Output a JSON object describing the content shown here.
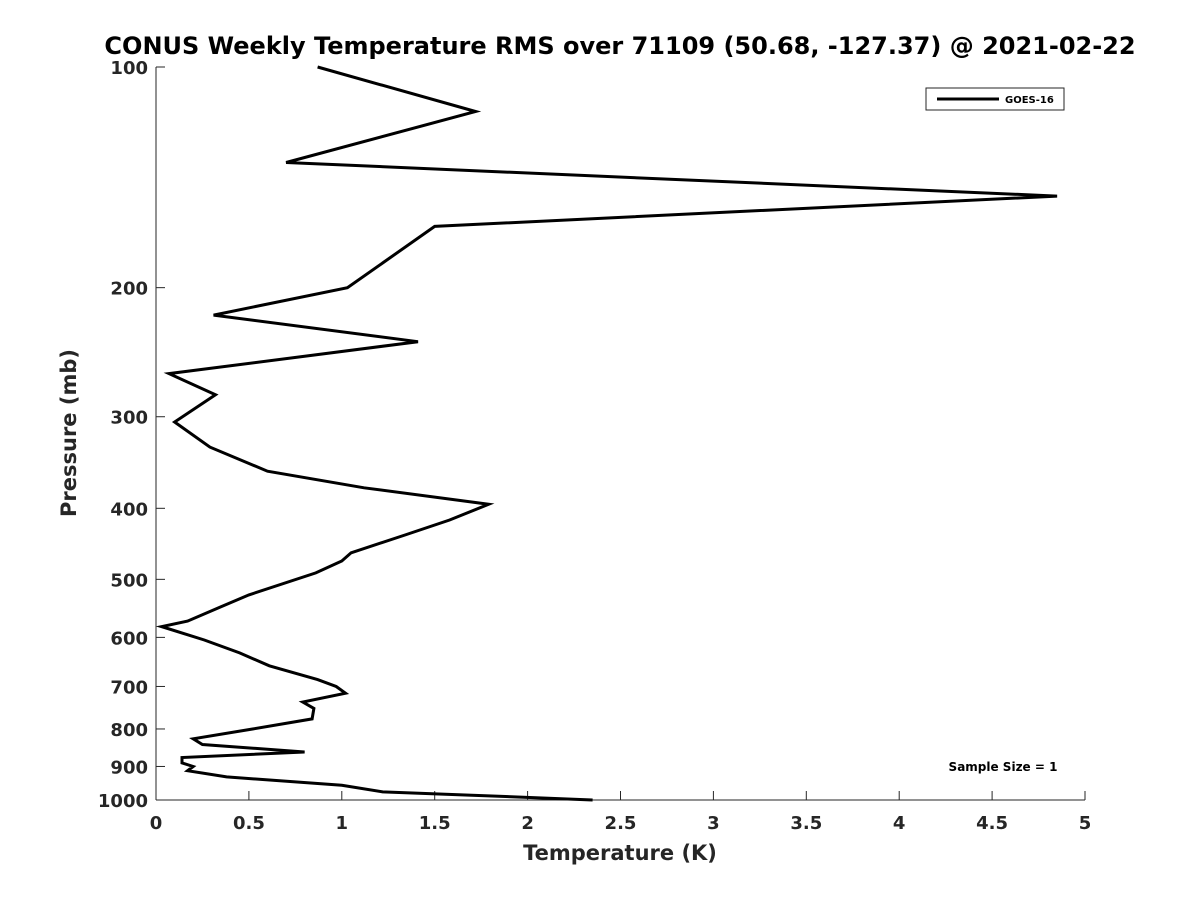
{
  "chart_data": {
    "type": "line",
    "title": "CONUS Weekly Temperature RMS over 71109 (50.68, -127.37) @ 2021-02-22",
    "xlabel": "Temperature (K)",
    "ylabel": "Pressure (mb)",
    "xlim": [
      0,
      5
    ],
    "ylim": [
      1000,
      100
    ],
    "y_scale": "log",
    "y_reversed": true,
    "grid": false,
    "legend_position": "top-right",
    "x_ticks": [
      "0",
      "0.5",
      "1",
      "1.5",
      "2",
      "2.5",
      "3",
      "3.5",
      "4",
      "4.5",
      "5"
    ],
    "y_ticks": [
      "100",
      "200",
      "300",
      "400",
      "500",
      "600",
      "700",
      "800",
      "900",
      "1000"
    ],
    "annotation": "Sample Size = 1",
    "series": [
      {
        "name": "GOES-16",
        "color": "#000000",
        "points": [
          [
            0.87,
            100
          ],
          [
            1.72,
            115
          ],
          [
            0.7,
            135
          ],
          [
            4.85,
            150
          ],
          [
            1.5,
            165
          ],
          [
            1.03,
            200
          ],
          [
            0.31,
            218
          ],
          [
            1.41,
            237
          ],
          [
            0.07,
            262
          ],
          [
            0.32,
            280
          ],
          [
            0.1,
            305
          ],
          [
            0.29,
            330
          ],
          [
            0.6,
            356
          ],
          [
            1.12,
            375
          ],
          [
            1.79,
            395
          ],
          [
            1.58,
            415
          ],
          [
            1.34,
            435
          ],
          [
            1.05,
            460
          ],
          [
            1.0,
            472
          ],
          [
            0.86,
            490
          ],
          [
            0.5,
            525
          ],
          [
            0.35,
            545
          ],
          [
            0.17,
            570
          ],
          [
            0.03,
            580
          ],
          [
            0.26,
            605
          ],
          [
            0.45,
            630
          ],
          [
            0.61,
            656
          ],
          [
            0.87,
            685
          ],
          [
            0.97,
            700
          ],
          [
            1.02,
            715
          ],
          [
            0.79,
            735
          ],
          [
            0.85,
            750
          ],
          [
            0.84,
            775
          ],
          [
            0.52,
            800
          ],
          [
            0.2,
            825
          ],
          [
            0.25,
            840
          ],
          [
            0.8,
            860
          ],
          [
            0.14,
            875
          ],
          [
            0.14,
            890
          ],
          [
            0.2,
            900
          ],
          [
            0.17,
            912
          ],
          [
            0.38,
            930
          ],
          [
            1.0,
            955
          ],
          [
            1.22,
            975
          ],
          [
            1.7,
            985
          ],
          [
            2.35,
            1000
          ]
        ]
      }
    ]
  }
}
